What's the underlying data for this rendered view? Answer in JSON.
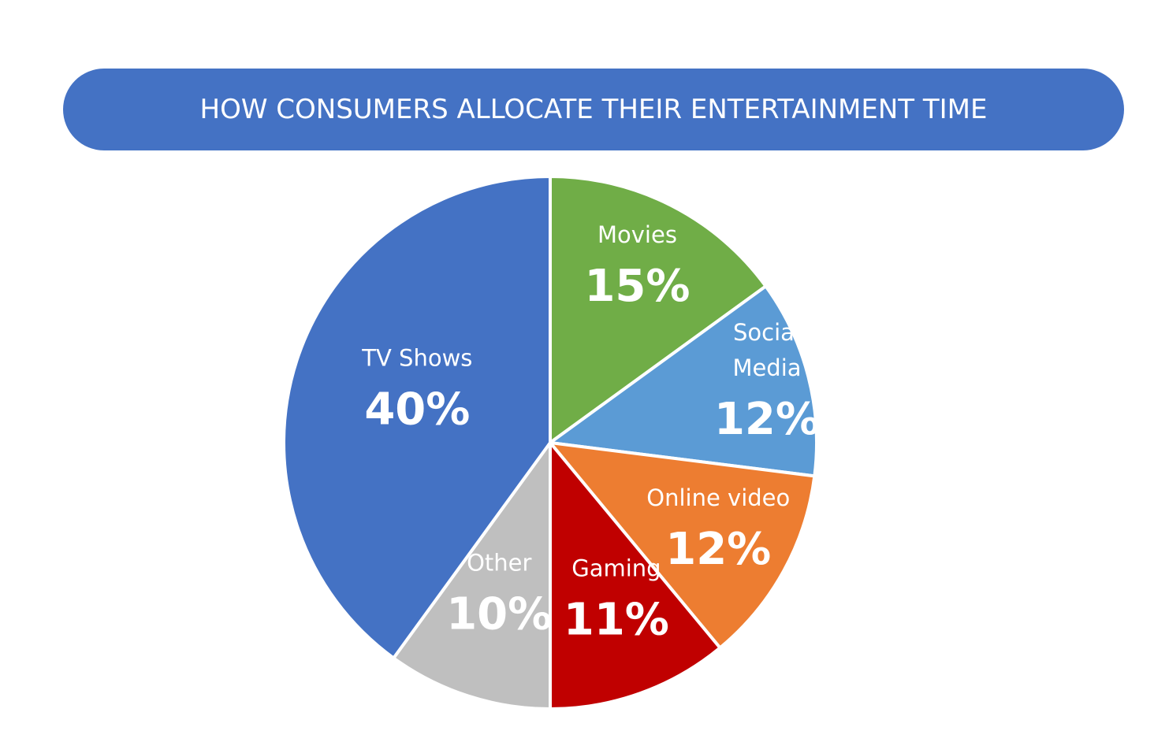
{
  "chart_data": {
    "type": "pie",
    "title": "HOW CONSUMERS ALLOCATE THEIR ENTERTAINMENT TIME",
    "unit": "%",
    "slices": [
      {
        "label": "Movies",
        "label_lines": [
          "Movies"
        ],
        "value": 15,
        "value_label": "15%",
        "color": "#70AD47"
      },
      {
        "label": "Social Media",
        "label_lines": [
          "Social",
          "Media"
        ],
        "value": 12,
        "value_label": "12%",
        "color": "#5B9BD5"
      },
      {
        "label": "Online video",
        "label_lines": [
          "Online video"
        ],
        "value": 12,
        "value_label": "12%",
        "color": "#ED7D31"
      },
      {
        "label": "Gaming",
        "label_lines": [
          "Gaming"
        ],
        "value": 11,
        "value_label": "11%",
        "color": "#C00000"
      },
      {
        "label": "Other",
        "label_lines": [
          "Other"
        ],
        "value": 10,
        "value_label": "10%",
        "color": "#BFBFBF"
      },
      {
        "label": "TV Shows",
        "label_lines": [
          "TV Shows"
        ],
        "value": 40,
        "value_label": "40%",
        "color": "#4472C4"
      }
    ],
    "start_angle": "12 o'clock",
    "direction": "clockwise",
    "legend": "none",
    "data_labels": "inside"
  },
  "colors": {
    "banner": "#4472C4",
    "banner_text": "#FFFFFF",
    "slice_border": "#FFFFFF"
  }
}
